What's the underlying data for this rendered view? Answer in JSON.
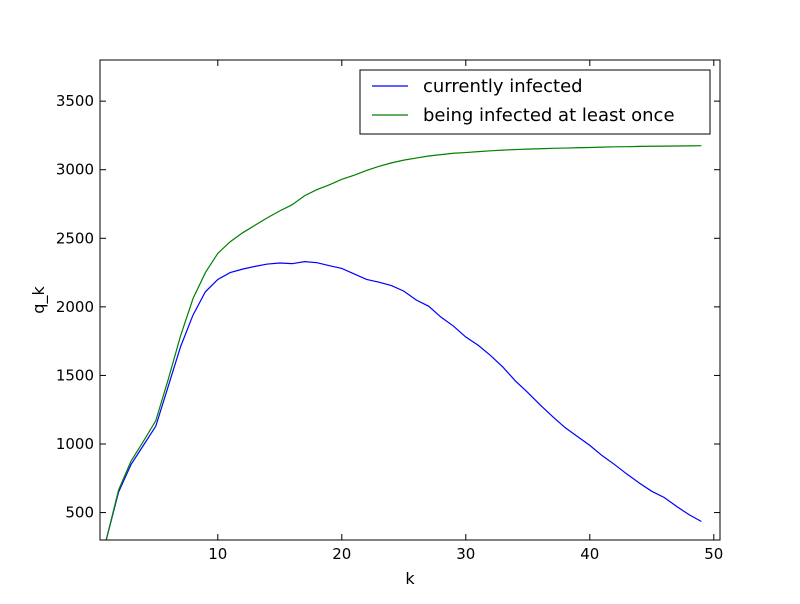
{
  "chart_data": {
    "type": "line",
    "title": "",
    "xlabel": "k",
    "ylabel": "q_k",
    "xlim": [
      0.5,
      50.5
    ],
    "ylim": [
      300,
      3800
    ],
    "xticks": [
      10,
      20,
      30,
      40,
      50
    ],
    "yticks": [
      500,
      1000,
      1500,
      2000,
      2500,
      3000,
      3500
    ],
    "grid": false,
    "legend": {
      "location": "upper right"
    },
    "x": [
      1,
      2,
      3,
      4,
      5,
      6,
      7,
      8,
      9,
      10,
      11,
      12,
      13,
      14,
      15,
      16,
      17,
      18,
      19,
      20,
      21,
      22,
      23,
      24,
      25,
      26,
      27,
      28,
      29,
      30,
      31,
      32,
      33,
      34,
      35,
      36,
      37,
      38,
      39,
      40,
      41,
      42,
      43,
      44,
      45,
      46,
      47,
      48,
      49
    ],
    "series": [
      {
        "name": "currently infected",
        "color": "#0000ff",
        "values": [
          300,
          650,
          850,
          990,
          1130,
          1420,
          1710,
          1940,
          2110,
          2200,
          2250,
          2275,
          2295,
          2312,
          2320,
          2315,
          2330,
          2322,
          2300,
          2280,
          2240,
          2200,
          2180,
          2155,
          2115,
          2050,
          2005,
          1925,
          1860,
          1780,
          1720,
          1645,
          1560,
          1460,
          1375,
          1285,
          1200,
          1120,
          1055,
          990,
          915,
          850,
          780,
          715,
          655,
          610,
          545,
          485,
          435
        ]
      },
      {
        "name": "being infected at least once",
        "color": "#008000",
        "values": [
          300,
          665,
          875,
          1020,
          1170,
          1470,
          1790,
          2060,
          2250,
          2390,
          2475,
          2540,
          2595,
          2650,
          2700,
          2745,
          2810,
          2855,
          2890,
          2930,
          2960,
          2995,
          3025,
          3050,
          3070,
          3085,
          3100,
          3110,
          3120,
          3125,
          3132,
          3138,
          3143,
          3147,
          3150,
          3153,
          3156,
          3158,
          3160,
          3162,
          3165,
          3167,
          3168,
          3170,
          3171,
          3172,
          3173,
          3174,
          3175
        ]
      }
    ]
  }
}
